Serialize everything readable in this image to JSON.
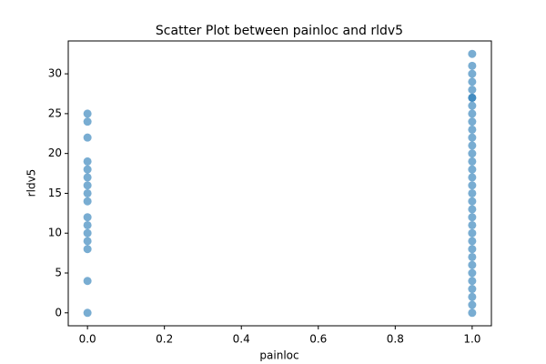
{
  "chart_data": {
    "type": "scatter",
    "title": "Scatter Plot between painloc and rldv5",
    "x_label": "painloc",
    "y_label": "rldv5",
    "series": [
      {
        "color": "#1f77b4",
        "opacity": 0.6,
        "x": [
          0,
          0,
          0,
          0,
          0,
          0,
          0,
          0,
          0,
          0,
          0,
          0,
          0,
          0,
          0,
          0,
          1,
          1,
          1,
          1,
          1,
          1,
          1,
          1,
          1,
          1,
          1,
          1,
          1,
          1,
          1,
          1,
          1,
          1,
          1,
          1,
          1,
          1,
          1,
          1,
          1,
          1,
          1,
          1,
          1,
          1,
          1,
          1,
          1,
          1
        ],
        "values": [
          0,
          4,
          8,
          9,
          10,
          11,
          12,
          14,
          15,
          16,
          17,
          18,
          19,
          22,
          24,
          25,
          0,
          2,
          3,
          4,
          5,
          6,
          7,
          8,
          9,
          10,
          11,
          12,
          13,
          14,
          15,
          16,
          17,
          18,
          19,
          20,
          21,
          22,
          23,
          24,
          25,
          26,
          27,
          28,
          29,
          30,
          31,
          32.5,
          1,
          27
        ]
      }
    ],
    "xlim": [
      -0.05,
      1.05
    ],
    "xticks": [
      {
        "value": 0,
        "label": "0.0"
      },
      {
        "value": 0.2,
        "label": "0.2"
      },
      {
        "value": 0.4,
        "label": "0.4"
      },
      {
        "value": 0.6,
        "label": "0.6"
      },
      {
        "value": 0.8,
        "label": "0.8"
      },
      {
        "value": 1,
        "label": "1.0"
      }
    ],
    "ylim": [
      -1.625,
      34.125
    ],
    "yticks": [
      0,
      5,
      10,
      15,
      20,
      25,
      30
    ],
    "grid": false
  }
}
